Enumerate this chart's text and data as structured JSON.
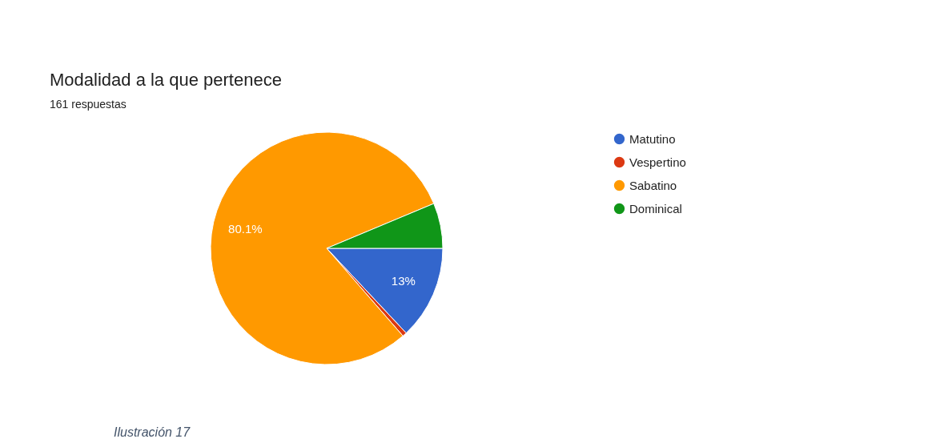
{
  "chart_data": {
    "type": "pie",
    "title": "Modalidad a la que pertenece",
    "subtitle": "161 respuestas",
    "categories": [
      "Matutino",
      "Vespertino",
      "Sabatino",
      "Dominical"
    ],
    "values": [
      13,
      0.6,
      80.1,
      6.3
    ],
    "colors": [
      "#3366cc",
      "#dc3912",
      "#ff9900",
      "#109618"
    ],
    "value_labels": [
      "13%",
      null,
      "80.1%",
      null
    ],
    "legend": "right",
    "annotations": [
      "Ilustración 17"
    ]
  }
}
